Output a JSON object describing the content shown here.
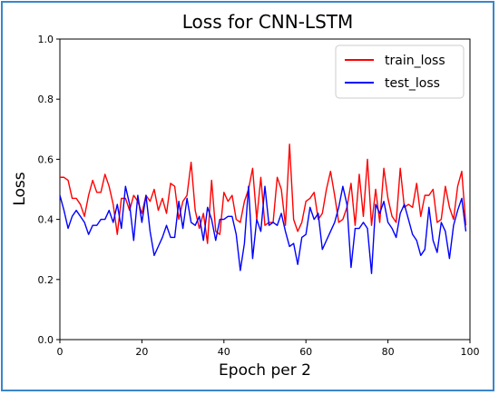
{
  "chart_data": {
    "type": "line",
    "title": "Loss for CNN-LSTM",
    "xlabel": "Epoch per 2",
    "ylabel": "Loss",
    "xlim": [
      0,
      100
    ],
    "ylim": [
      0.0,
      1.0
    ],
    "xticks": [
      0,
      20,
      40,
      60,
      80,
      100
    ],
    "yticks": [
      0.0,
      0.2,
      0.4,
      0.6,
      0.8,
      1.0
    ],
    "xtick_labels": [
      "0",
      "20",
      "40",
      "60",
      "80",
      "100"
    ],
    "ytick_labels": [
      "0.0",
      "0.2",
      "0.4",
      "0.6",
      "0.8",
      "1.0"
    ],
    "grid": false,
    "legend_position": "top-right",
    "x": [
      0,
      1,
      2,
      3,
      4,
      5,
      6,
      7,
      8,
      9,
      10,
      11,
      12,
      13,
      14,
      15,
      16,
      17,
      18,
      19,
      20,
      21,
      22,
      23,
      24,
      25,
      26,
      27,
      28,
      29,
      30,
      31,
      32,
      33,
      34,
      35,
      36,
      37,
      38,
      39,
      40,
      41,
      42,
      43,
      44,
      45,
      46,
      47,
      48,
      49,
      50,
      51,
      52,
      53,
      54,
      55,
      56,
      57,
      58,
      59,
      60,
      61,
      62,
      63,
      64,
      65,
      66,
      67,
      68,
      69,
      70,
      71,
      72,
      73,
      74,
      75,
      76,
      77,
      78,
      79,
      80,
      81,
      82,
      83,
      84,
      85,
      86,
      87,
      88,
      89,
      90,
      91,
      92,
      93,
      94,
      95,
      96,
      97,
      98,
      99
    ],
    "series": [
      {
        "name": "train_loss",
        "color": "#ff0000",
        "values": [
          0.54,
          0.54,
          0.53,
          0.47,
          0.47,
          0.45,
          0.41,
          0.48,
          0.53,
          0.49,
          0.49,
          0.55,
          0.51,
          0.45,
          0.35,
          0.47,
          0.47,
          0.43,
          0.48,
          0.46,
          0.42,
          0.48,
          0.46,
          0.5,
          0.43,
          0.47,
          0.42,
          0.52,
          0.51,
          0.4,
          0.46,
          0.48,
          0.59,
          0.43,
          0.37,
          0.42,
          0.32,
          0.53,
          0.36,
          0.35,
          0.49,
          0.46,
          0.48,
          0.4,
          0.39,
          0.46,
          0.5,
          0.57,
          0.4,
          0.54,
          0.38,
          0.39,
          0.39,
          0.54,
          0.5,
          0.38,
          0.65,
          0.4,
          0.36,
          0.39,
          0.46,
          0.47,
          0.49,
          0.4,
          0.42,
          0.5,
          0.56,
          0.48,
          0.39,
          0.4,
          0.44,
          0.52,
          0.38,
          0.55,
          0.41,
          0.6,
          0.38,
          0.5,
          0.39,
          0.57,
          0.47,
          0.41,
          0.39,
          0.57,
          0.44,
          0.45,
          0.44,
          0.52,
          0.41,
          0.48,
          0.48,
          0.5,
          0.39,
          0.4,
          0.51,
          0.44,
          0.4,
          0.51,
          0.56,
          0.38
        ]
      },
      {
        "name": "test_loss",
        "color": "#0000ff",
        "values": [
          0.48,
          0.43,
          0.37,
          0.41,
          0.43,
          0.41,
          0.39,
          0.35,
          0.38,
          0.38,
          0.4,
          0.4,
          0.43,
          0.39,
          0.45,
          0.37,
          0.51,
          0.45,
          0.33,
          0.48,
          0.39,
          0.48,
          0.36,
          0.28,
          0.31,
          0.34,
          0.38,
          0.34,
          0.34,
          0.46,
          0.37,
          0.47,
          0.39,
          0.38,
          0.41,
          0.33,
          0.44,
          0.4,
          0.33,
          0.4,
          0.4,
          0.41,
          0.41,
          0.35,
          0.23,
          0.32,
          0.51,
          0.27,
          0.4,
          0.36,
          0.51,
          0.38,
          0.39,
          0.38,
          0.42,
          0.36,
          0.31,
          0.32,
          0.25,
          0.34,
          0.35,
          0.44,
          0.4,
          0.42,
          0.3,
          0.33,
          0.36,
          0.39,
          0.44,
          0.51,
          0.45,
          0.24,
          0.37,
          0.37,
          0.39,
          0.37,
          0.22,
          0.45,
          0.42,
          0.46,
          0.39,
          0.37,
          0.34,
          0.42,
          0.45,
          0.4,
          0.35,
          0.33,
          0.28,
          0.3,
          0.44,
          0.33,
          0.29,
          0.39,
          0.36,
          0.27,
          0.38,
          0.43,
          0.47,
          0.36
        ]
      }
    ]
  }
}
